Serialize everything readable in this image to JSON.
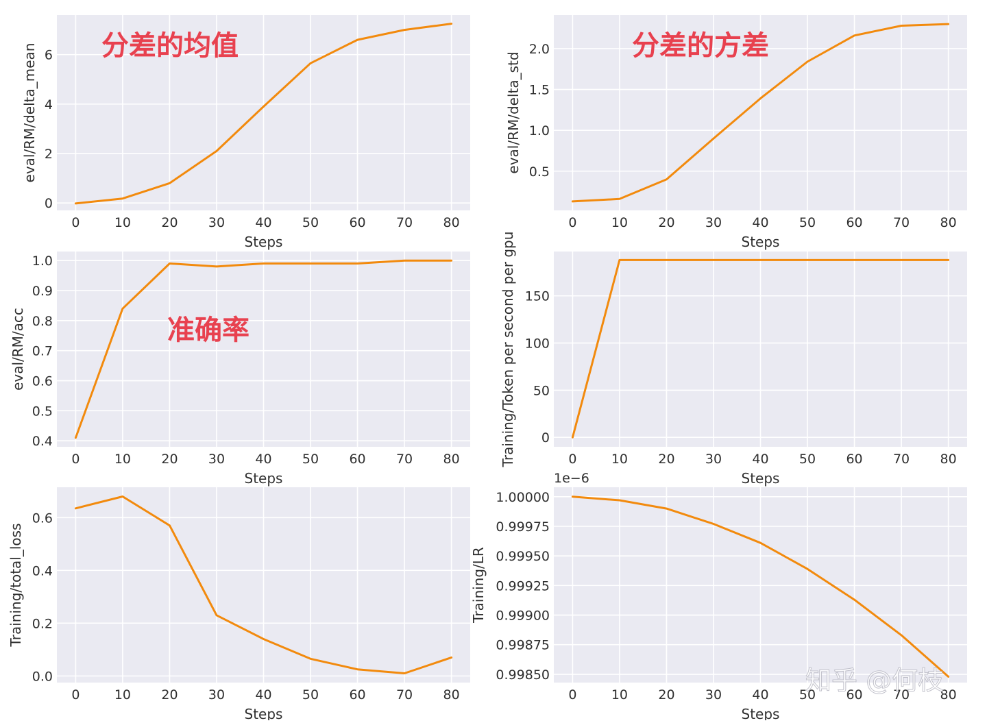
{
  "colors": {
    "panel_bg": "#eaeaf2",
    "grid": "#ffffff",
    "line": "#f28a0d",
    "annotation": "#e8414f"
  },
  "watermark": "知乎 @何枝",
  "chart_data": [
    {
      "type": "line",
      "xlabel": "Steps",
      "ylabel": "eval/RM/delta_mean",
      "x": [
        0,
        10,
        20,
        30,
        40,
        50,
        60,
        70,
        80
      ],
      "y": [
        -0.02,
        0.18,
        0.8,
        2.1,
        3.9,
        5.65,
        6.6,
        7.0,
        7.25
      ],
      "xlim": [
        -4,
        84
      ],
      "ylim": [
        -0.3,
        7.6
      ],
      "xticks": [
        0,
        10,
        20,
        30,
        40,
        50,
        60,
        70,
        80
      ],
      "yticks": [
        0,
        2,
        4,
        6
      ],
      "ytick_labels": [
        "0",
        "2",
        "4",
        "6"
      ],
      "annotation": "分差的均值"
    },
    {
      "type": "line",
      "xlabel": "Steps",
      "ylabel": "eval/RM/delta_std",
      "x": [
        0,
        10,
        20,
        30,
        40,
        50,
        60,
        70,
        80
      ],
      "y": [
        0.13,
        0.16,
        0.4,
        0.9,
        1.39,
        1.84,
        2.16,
        2.28,
        2.3
      ],
      "xlim": [
        -4,
        84
      ],
      "ylim": [
        0.02,
        2.41
      ],
      "xticks": [
        0,
        10,
        20,
        30,
        40,
        50,
        60,
        70,
        80
      ],
      "yticks": [
        0.5,
        1.0,
        1.5,
        2.0
      ],
      "ytick_labels": [
        "0.5",
        "1.0",
        "1.5",
        "2.0"
      ],
      "annotation": "分差的方差"
    },
    {
      "type": "line",
      "xlabel": "Steps",
      "ylabel": "eval/RM/acc",
      "x": [
        0,
        10,
        20,
        30,
        40,
        50,
        60,
        70,
        80
      ],
      "y": [
        0.41,
        0.84,
        0.99,
        0.98,
        0.99,
        0.99,
        0.99,
        1.0,
        1.0
      ],
      "xlim": [
        -4,
        84
      ],
      "ylim": [
        0.38,
        1.03
      ],
      "xticks": [
        0,
        10,
        20,
        30,
        40,
        50,
        60,
        70,
        80
      ],
      "yticks": [
        0.4,
        0.5,
        0.6,
        0.7,
        0.8,
        0.9,
        1.0
      ],
      "ytick_labels": [
        "0.4",
        "0.5",
        "0.6",
        "0.7",
        "0.8",
        "0.9",
        "1.0"
      ],
      "annotation": "准确率"
    },
    {
      "type": "line",
      "xlabel": "Steps",
      "ylabel": "Training/Token per second per gpu",
      "x": [
        0,
        10,
        20,
        30,
        40,
        50,
        60,
        70,
        80
      ],
      "y": [
        0,
        188,
        188,
        188,
        188,
        188,
        188,
        188,
        188
      ],
      "xlim": [
        -4,
        84
      ],
      "ylim": [
        -10,
        197
      ],
      "xticks": [
        0,
        10,
        20,
        30,
        40,
        50,
        60,
        70,
        80
      ],
      "yticks": [
        0,
        50,
        100,
        150
      ],
      "ytick_labels": [
        "0",
        "50",
        "100",
        "150"
      ],
      "annotation": ""
    },
    {
      "type": "line",
      "xlabel": "Steps",
      "ylabel": "Training/total_loss",
      "x": [
        0,
        10,
        20,
        30,
        40,
        50,
        60,
        70,
        80
      ],
      "y": [
        0.635,
        0.68,
        0.57,
        0.23,
        0.14,
        0.065,
        0.025,
        0.01,
        0.07
      ],
      "xlim": [
        -4,
        84
      ],
      "ylim": [
        -0.025,
        0.715
      ],
      "xticks": [
        0,
        10,
        20,
        30,
        40,
        50,
        60,
        70,
        80
      ],
      "yticks": [
        0.0,
        0.2,
        0.4,
        0.6
      ],
      "ytick_labels": [
        "0.0",
        "0.2",
        "0.4",
        "0.6"
      ],
      "annotation": ""
    },
    {
      "type": "line",
      "xlabel": "Steps",
      "ylabel": "Training/LR",
      "offset_text": "1e−6",
      "x": [
        0,
        10,
        20,
        30,
        40,
        50,
        60,
        70,
        80
      ],
      "y": [
        1.0,
        0.99997,
        0.9999,
        0.99977,
        0.99961,
        0.99939,
        0.99913,
        0.99883,
        0.99848
      ],
      "xlim": [
        -4,
        84
      ],
      "ylim": [
        0.99843,
        1.00008
      ],
      "xticks": [
        0,
        10,
        20,
        30,
        40,
        50,
        60,
        70,
        80
      ],
      "yticks": [
        0.9985,
        0.99875,
        0.999,
        0.99925,
        0.9995,
        0.99975,
        1.0
      ],
      "ytick_labels": [
        "0.99850",
        "0.99875",
        "0.99900",
        "0.99925",
        "0.99950",
        "0.99975",
        "1.00000"
      ],
      "annotation": ""
    }
  ]
}
